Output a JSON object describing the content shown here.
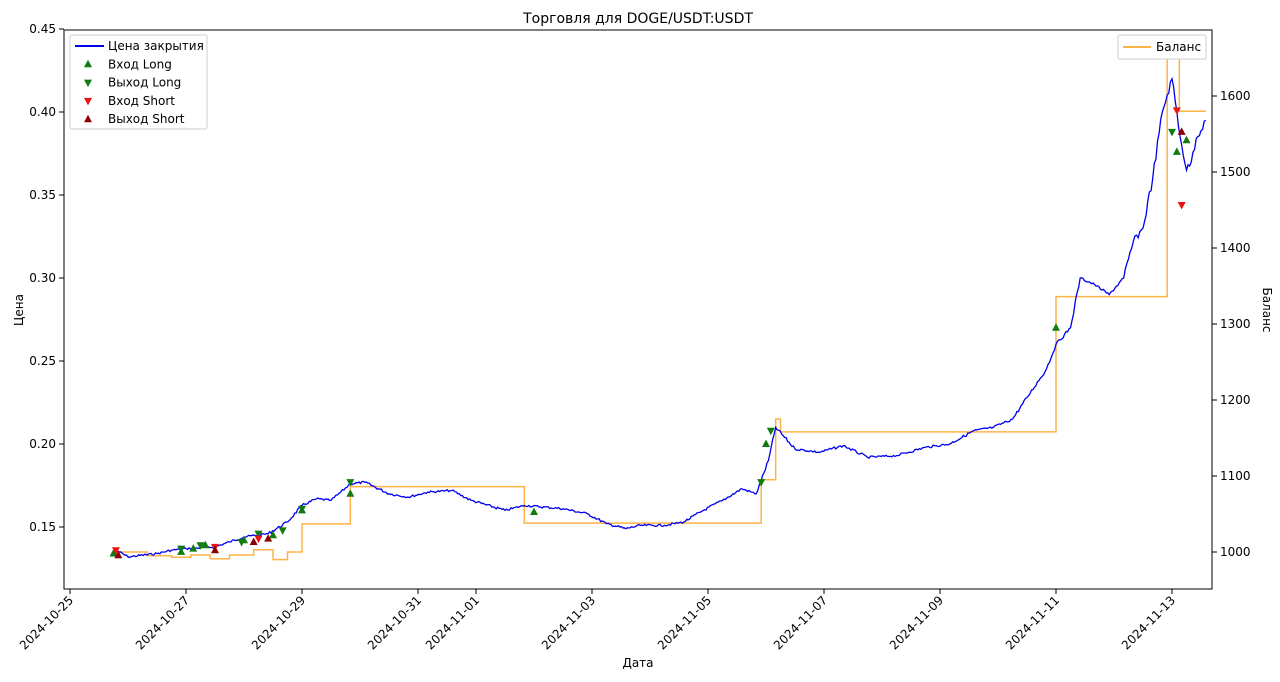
{
  "chart_data": {
    "type": "line",
    "title": "Торговля для DOGE/USDT:USDT",
    "xlabel": "Дата",
    "ylabel": "Цена",
    "y2label": "Баланс",
    "xlim": [
      "2024-10-25",
      "2024-11-13"
    ],
    "ylim": [
      0.12,
      0.45
    ],
    "y2lim": [
      990,
      1660
    ],
    "x_ticks": [
      "2024-10-25",
      "2024-10-27",
      "2024-10-29",
      "2024-10-31",
      "2024-11-01",
      "2024-11-03",
      "2024-11-05",
      "2024-11-07",
      "2024-11-09",
      "2024-11-11",
      "2024-11-13"
    ],
    "y_ticks": [
      "0.15",
      "0.20",
      "0.25",
      "0.30",
      "0.35",
      "0.40",
      "0.45"
    ],
    "y2_ticks": [
      "1000",
      "1100",
      "1200",
      "1300",
      "1400",
      "1500",
      "1600"
    ],
    "legend_left": {
      "placement": "upper-left",
      "entries": [
        "Цена закрытия",
        "Вход Long",
        "Выход Long",
        "Вход Short",
        "Выход Short"
      ]
    },
    "legend_right": {
      "placement": "upper-right",
      "entries": [
        "Баланс"
      ]
    },
    "colors": {
      "price": "#0000ee",
      "balance": "#ffb347",
      "long_entry": "#117a11",
      "long_exit": "#117a11",
      "short_entry": "#ee1111",
      "short_exit": "#8b0000"
    },
    "series": [
      {
        "name": "Цена закрытия",
        "axis": "left",
        "points": [
          [
            "2024-10-25T19:00",
            0.136
          ],
          [
            "2024-10-26T00:00",
            0.132
          ],
          [
            "2024-10-26T12:00",
            0.134
          ],
          [
            "2024-10-26T18:00",
            0.136
          ],
          [
            "2024-10-27T00:00",
            0.137
          ],
          [
            "2024-10-27T12:00",
            0.138
          ],
          [
            "2024-10-27T18:00",
            0.141
          ],
          [
            "2024-10-28T00:00",
            0.144
          ],
          [
            "2024-10-28T10:00",
            0.146
          ],
          [
            "2024-10-28T18:00",
            0.153
          ],
          [
            "2024-10-29T00:00",
            0.163
          ],
          [
            "2024-10-29T06:00",
            0.167
          ],
          [
            "2024-10-29T12:00",
            0.166
          ],
          [
            "2024-10-29T16:00",
            0.171
          ],
          [
            "2024-10-29T20:00",
            0.176
          ],
          [
            "2024-10-30T02:00",
            0.177
          ],
          [
            "2024-10-30T12:00",
            0.17
          ],
          [
            "2024-10-30T20:00",
            0.168
          ],
          [
            "2024-10-31T04:00",
            0.171
          ],
          [
            "2024-10-31T14:00",
            0.172
          ],
          [
            "2024-10-31T22:00",
            0.166
          ],
          [
            "2024-11-01T12:00",
            0.16
          ],
          [
            "2024-11-01T20:00",
            0.163
          ],
          [
            "2024-11-02T12:00",
            0.161
          ],
          [
            "2024-11-02T22:00",
            0.158
          ],
          [
            "2024-11-03T06:00",
            0.152
          ],
          [
            "2024-11-03T14:00",
            0.149
          ],
          [
            "2024-11-03T20:00",
            0.151
          ],
          [
            "2024-11-04T06:00",
            0.151
          ],
          [
            "2024-11-04T14:00",
            0.153
          ],
          [
            "2024-11-04T22:00",
            0.16
          ],
          [
            "2024-11-05T06:00",
            0.166
          ],
          [
            "2024-11-05T14:00",
            0.173
          ],
          [
            "2024-11-05T20:00",
            0.17
          ],
          [
            "2024-11-06T01:00",
            0.19
          ],
          [
            "2024-11-06T04:00",
            0.21
          ],
          [
            "2024-11-06T12:00",
            0.197
          ],
          [
            "2024-11-06T22:00",
            0.195
          ],
          [
            "2024-11-07T08:00",
            0.199
          ],
          [
            "2024-11-07T18:00",
            0.192
          ],
          [
            "2024-11-08T06:00",
            0.193
          ],
          [
            "2024-11-08T18:00",
            0.198
          ],
          [
            "2024-11-09T04:00",
            0.2
          ],
          [
            "2024-11-09T14:00",
            0.208
          ],
          [
            "2024-11-09T22:00",
            0.21
          ],
          [
            "2024-11-10T06:00",
            0.215
          ],
          [
            "2024-11-10T12:00",
            0.228
          ],
          [
            "2024-11-10T20:00",
            0.245
          ],
          [
            "2024-11-11T00:00",
            0.26
          ],
          [
            "2024-11-11T06:00",
            0.27
          ],
          [
            "2024-11-11T10:00",
            0.3
          ],
          [
            "2024-11-11T16:00",
            0.296
          ],
          [
            "2024-11-11T22:00",
            0.29
          ],
          [
            "2024-11-12T04:00",
            0.3
          ],
          [
            "2024-11-12T08:00",
            0.322
          ],
          [
            "2024-11-12T12:00",
            0.33
          ],
          [
            "2024-11-12T16:00",
            0.36
          ],
          [
            "2024-11-12T20:00",
            0.4
          ],
          [
            "2024-11-13T00:00",
            0.42
          ],
          [
            "2024-11-13T04:00",
            0.38
          ],
          [
            "2024-11-13T06:00",
            0.365
          ],
          [
            "2024-11-13T08:00",
            0.37
          ],
          [
            "2024-11-13T10:00",
            0.384
          ],
          [
            "2024-11-13T14:00",
            0.395
          ]
        ]
      },
      {
        "name": "Баланс",
        "axis": "right",
        "step": true,
        "points": [
          [
            "2024-10-25T19:00",
            1000
          ],
          [
            "2024-10-26T08:00",
            995
          ],
          [
            "2024-10-26T18:00",
            993
          ],
          [
            "2024-10-27T02:00",
            996
          ],
          [
            "2024-10-27T10:00",
            991
          ],
          [
            "2024-10-27T18:00",
            996
          ],
          [
            "2024-10-28T04:00",
            1003
          ],
          [
            "2024-10-28T12:00",
            990
          ],
          [
            "2024-10-28T18:00",
            1000
          ],
          [
            "2024-10-29T00:00",
            1037
          ],
          [
            "2024-10-29T20:00",
            1086
          ],
          [
            "2024-11-01T20:00",
            1038
          ],
          [
            "2024-11-05T22:00",
            1095
          ],
          [
            "2024-11-06T04:00",
            1175
          ],
          [
            "2024-11-06T06:00",
            1158
          ],
          [
            "2024-11-11T00:00",
            1336
          ],
          [
            "2024-11-12T22:00",
            1650
          ],
          [
            "2024-11-13T03:00",
            1580
          ]
        ]
      }
    ],
    "markers": {
      "long_entry": [
        [
          "2024-10-25T18:00",
          0.134
        ],
        [
          "2024-10-26T22:00",
          0.135
        ],
        [
          "2024-10-27T03:00",
          0.137
        ],
        [
          "2024-10-27T08:00",
          0.139
        ],
        [
          "2024-10-28T00:00",
          0.142
        ],
        [
          "2024-10-28T12:00",
          0.145
        ],
        [
          "2024-10-29T00:00",
          0.16
        ],
        [
          "2024-10-29T20:00",
          0.17
        ],
        [
          "2024-11-02T00:00",
          0.159
        ],
        [
          "2024-11-06T00:00",
          0.2
        ],
        [
          "2024-11-11T00:00",
          0.27
        ],
        [
          "2024-11-13T02:00",
          0.376
        ],
        [
          "2024-11-13T06:00",
          0.383
        ]
      ],
      "long_exit": [
        [
          "2024-10-26T22:00",
          0.137
        ],
        [
          "2024-10-27T06:00",
          0.139
        ],
        [
          "2024-10-27T23:00",
          0.141
        ],
        [
          "2024-10-28T06:00",
          0.146
        ],
        [
          "2024-10-28T16:00",
          0.148
        ],
        [
          "2024-10-29T00:00",
          0.161
        ],
        [
          "2024-10-29T20:00",
          0.177
        ],
        [
          "2024-11-05T22:00",
          0.177
        ],
        [
          "2024-11-06T02:00",
          0.208
        ],
        [
          "2024-11-13T00:00",
          0.388
        ]
      ],
      "short_entry": [
        [
          "2024-10-25T19:00",
          0.136
        ],
        [
          "2024-10-27T12:00",
          0.138
        ],
        [
          "2024-10-28T06:00",
          0.143
        ],
        [
          "2024-11-13T02:00",
          0.401
        ],
        [
          "2024-11-13T04:00",
          0.344
        ]
      ],
      "short_exit": [
        [
          "2024-10-25T20:00",
          0.133
        ],
        [
          "2024-10-27T12:00",
          0.136
        ],
        [
          "2024-10-28T04:00",
          0.141
        ],
        [
          "2024-10-28T10:00",
          0.143
        ],
        [
          "2024-11-13T04:00",
          0.388
        ]
      ]
    }
  }
}
